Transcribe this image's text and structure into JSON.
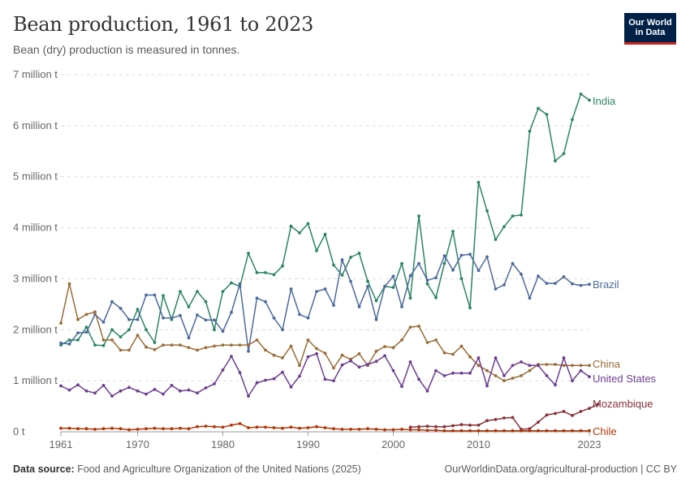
{
  "header": {
    "title": "Bean production, 1961 to 2023",
    "subtitle": "Bean (dry) production is measured in tonnes.",
    "logo_line1": "Our World",
    "logo_line2": "in Data"
  },
  "footer": {
    "source_label": "Data source:",
    "source_text": "Food and Agriculture Organization of the United Nations (2025)",
    "url_text": "OurWorldinData.org/agricultural-production | CC BY"
  },
  "chart_data": {
    "type": "line",
    "title": "Bean production, 1961 to 2023",
    "subtitle": "Bean (dry) production is measured in tonnes.",
    "ylim": [
      0,
      7000000
    ],
    "xlim": [
      1961,
      2023
    ],
    "y_ticks": [
      {
        "value": 0,
        "label": "0 t"
      },
      {
        "value": 1000000,
        "label": "1 million t"
      },
      {
        "value": 2000000,
        "label": "2 million t"
      },
      {
        "value": 3000000,
        "label": "3 million t"
      },
      {
        "value": 4000000,
        "label": "4 million t"
      },
      {
        "value": 5000000,
        "label": "5 million t"
      },
      {
        "value": 6000000,
        "label": "6 million t"
      },
      {
        "value": 7000000,
        "label": "7 million t"
      }
    ],
    "x_ticks": [
      1961,
      1970,
      1980,
      1990,
      2000,
      2010,
      2023
    ],
    "grid": "horizontal dashed",
    "legend": "inline labels at right end of lines",
    "series": [
      {
        "name": "India",
        "color": "#2c8465",
        "start": 1961,
        "values": [
          1.7,
          1.8,
          1.8,
          2.05,
          1.7,
          1.69,
          2.0,
          1.86,
          2.0,
          2.4,
          2.0,
          1.75,
          2.67,
          2.2,
          2.75,
          2.45,
          2.75,
          2.55,
          2.0,
          2.75,
          2.92,
          2.85,
          3.5,
          3.12,
          3.12,
          3.08,
          3.25,
          4.03,
          3.9,
          4.08,
          3.55,
          3.87,
          3.27,
          3.07,
          3.42,
          3.5,
          2.95,
          2.57,
          2.85,
          2.83,
          3.3,
          2.62,
          4.23,
          2.9,
          2.63,
          3.3,
          3.93,
          3.0,
          2.43,
          4.89,
          4.33,
          3.77,
          4.02,
          4.23,
          4.25,
          5.89,
          6.34,
          6.22,
          5.31,
          5.45,
          6.12,
          6.62,
          6.5
        ]
      },
      {
        "name": "Brazil",
        "color": "#4c6a9c",
        "start": 1961,
        "values": [
          1.74,
          1.72,
          1.94,
          1.95,
          2.3,
          2.15,
          2.55,
          2.42,
          2.2,
          2.2,
          2.68,
          2.68,
          2.23,
          2.23,
          2.28,
          1.84,
          2.29,
          2.19,
          2.19,
          1.97,
          2.34,
          2.9,
          1.58,
          2.62,
          2.55,
          2.23,
          2.0,
          2.8,
          2.3,
          2.23,
          2.75,
          2.8,
          2.48,
          3.37,
          2.95,
          2.45,
          2.85,
          2.2,
          2.85,
          3.05,
          2.45,
          3.06,
          3.3,
          2.97,
          3.02,
          3.45,
          3.17,
          3.46,
          3.48,
          3.16,
          3.43,
          2.8,
          2.88,
          3.3,
          3.09,
          2.62,
          3.05,
          2.91,
          2.91,
          3.04,
          2.9,
          2.87,
          2.89
        ]
      },
      {
        "name": "China",
        "color": "#996d39",
        "start": 1961,
        "values": [
          2.13,
          2.9,
          2.2,
          2.3,
          2.35,
          1.8,
          1.8,
          1.6,
          1.6,
          1.89,
          1.66,
          1.61,
          1.7,
          1.7,
          1.7,
          1.65,
          1.6,
          1.65,
          1.68,
          1.7,
          1.7,
          1.7,
          1.7,
          1.8,
          1.6,
          1.5,
          1.45,
          1.68,
          1.3,
          1.8,
          1.63,
          1.54,
          1.25,
          1.5,
          1.42,
          1.53,
          1.3,
          1.58,
          1.67,
          1.65,
          1.8,
          2.05,
          2.07,
          1.75,
          1.8,
          1.55,
          1.52,
          1.68,
          1.47,
          1.3,
          1.2,
          1.1,
          1.0,
          1.05,
          1.1,
          1.2,
          1.32,
          1.32,
          1.32,
          1.3,
          1.3,
          1.3,
          1.3
        ]
      },
      {
        "name": "United States",
        "color": "#6d3e91",
        "start": 1961,
        "values": [
          0.9,
          0.82,
          0.92,
          0.8,
          0.76,
          0.91,
          0.7,
          0.8,
          0.87,
          0.8,
          0.74,
          0.83,
          0.74,
          0.91,
          0.8,
          0.82,
          0.76,
          0.86,
          0.94,
          1.21,
          1.48,
          1.16,
          0.7,
          0.96,
          1.01,
          1.04,
          1.17,
          0.88,
          1.09,
          1.47,
          1.53,
          1.03,
          1.0,
          1.31,
          1.39,
          1.27,
          1.32,
          1.38,
          1.49,
          1.2,
          0.89,
          1.37,
          1.03,
          0.8,
          1.2,
          1.1,
          1.15,
          1.15,
          1.15,
          1.45,
          0.9,
          1.45,
          1.1,
          1.3,
          1.37,
          1.3,
          1.3,
          1.1,
          0.92,
          1.45,
          1.0,
          1.2,
          1.08
        ]
      },
      {
        "name": "Mozambique",
        "color": "#883039",
        "start": 2002,
        "values": [
          0.09,
          0.1,
          0.11,
          0.1,
          0.1,
          0.12,
          0.14,
          0.13,
          0.13,
          0.22,
          0.24,
          0.27,
          0.28,
          0.05,
          0.06,
          0.19,
          0.33,
          0.36,
          0.4,
          0.32,
          0.4,
          0.46,
          0.54
        ]
      },
      {
        "name": "Chile",
        "color": "#b13507",
        "start": 1961,
        "values": [
          0.07,
          0.07,
          0.06,
          0.06,
          0.05,
          0.06,
          0.07,
          0.06,
          0.04,
          0.05,
          0.06,
          0.07,
          0.06,
          0.06,
          0.07,
          0.06,
          0.1,
          0.11,
          0.1,
          0.09,
          0.13,
          0.16,
          0.08,
          0.09,
          0.09,
          0.08,
          0.07,
          0.09,
          0.07,
          0.08,
          0.1,
          0.08,
          0.06,
          0.05,
          0.05,
          0.05,
          0.06,
          0.05,
          0.04,
          0.04,
          0.05,
          0.04,
          0.04,
          0.03,
          0.03,
          0.02,
          0.02,
          0.02,
          0.02,
          0.02,
          0.02,
          0.02,
          0.02,
          0.02,
          0.02,
          0.02,
          0.02,
          0.02,
          0.02,
          0.02,
          0.02,
          0.02,
          0.02
        ]
      }
    ],
    "value_unit_note": "series values in million tonnes"
  }
}
